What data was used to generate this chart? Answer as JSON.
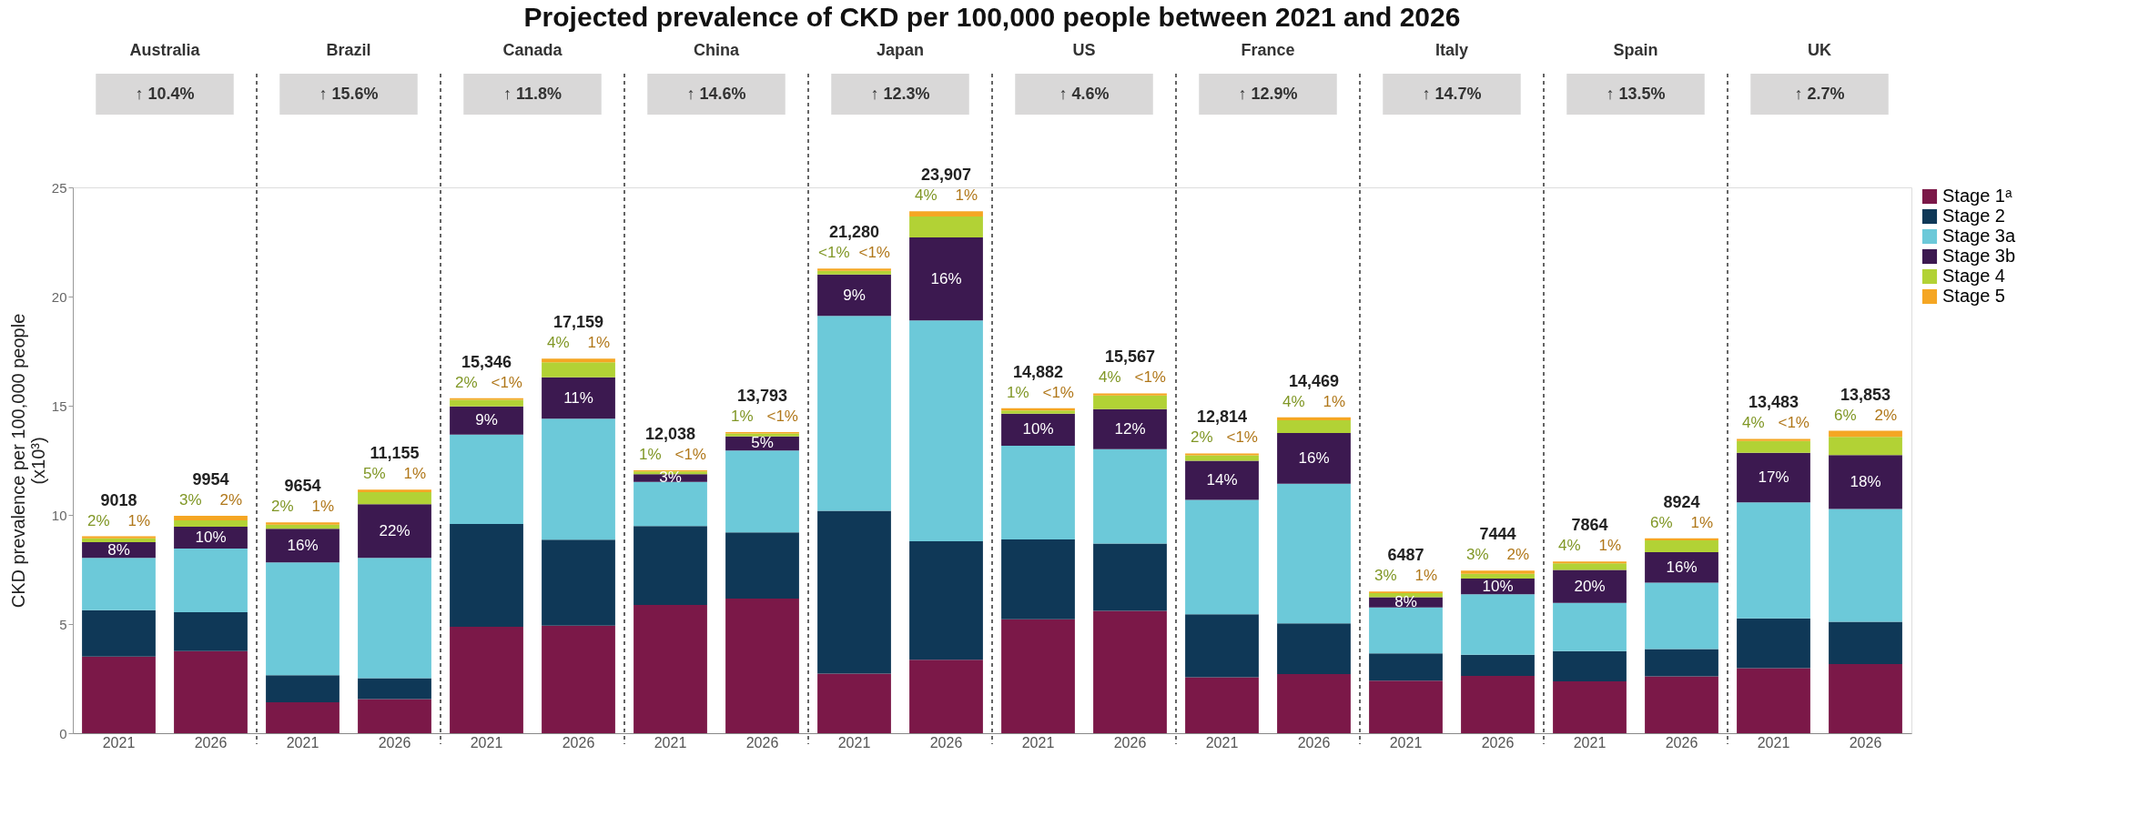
{
  "chart_data": {
    "type": "bar",
    "stacked": true,
    "title": "Projected prevalence of CKD per 100,000 people between 2021 and 2026",
    "ylabel": "CKD prevalence per 100,000 people\n(x10³)",
    "categories": [
      "2021",
      "2026",
      "2021",
      "2026",
      "2021",
      "2026",
      "2021",
      "2026",
      "2021",
      "2026",
      "2021",
      "2026",
      "2021",
      "2026",
      "2021",
      "2026",
      "2021",
      "2026",
      "2021",
      "2026"
    ],
    "ylim": [
      0,
      25
    ],
    "yticks": [
      0,
      5,
      10,
      15,
      20,
      25
    ],
    "grid": false,
    "legend": "right",
    "series": [
      {
        "name": "Stage 1ᵃ",
        "color": "#7b1848",
        "values": [
          3.51,
          3.76,
          1.42,
          1.56,
          4.88,
          4.93,
          5.88,
          6.17,
          2.73,
          3.36,
          5.22,
          5.6,
          2.56,
          2.71,
          2.41,
          2.62,
          2.37,
          2.6,
          2.98,
          3.17
        ]
      },
      {
        "name": "Stage 2",
        "color": "#0f3857",
        "values": [
          2.13,
          1.78,
          1.24,
          0.96,
          4.7,
          3.93,
          3.61,
          3.03,
          7.46,
          5.43,
          3.66,
          3.09,
          2.89,
          2.32,
          1.25,
          0.97,
          1.39,
          1.25,
          2.28,
          1.93
        ]
      },
      {
        "name": "Stage 3a",
        "color": "#6cc9d9",
        "values": [
          2.388,
          2.914,
          5.164,
          5.515,
          4.096,
          5.549,
          2.018,
          3.753,
          8.92,
          10.117,
          4.282,
          4.317,
          5.234,
          6.399,
          2.097,
          2.774,
          2.204,
          3.044,
          5.313,
          5.173
        ]
      },
      {
        "name": "Stage 3b",
        "color": "#3c1950",
        "values": [
          0.72,
          1.0,
          1.54,
          2.45,
          1.29,
          1.89,
          0.36,
          0.64,
          1.9,
          3.8,
          1.47,
          1.84,
          1.79,
          2.32,
          0.47,
          0.72,
          1.51,
          1.4,
          2.27,
          2.47
        ]
      },
      {
        "name": "Stage 4",
        "color": "#b2d235",
        "values": [
          0.18,
          0.3,
          0.19,
          0.56,
          0.3,
          0.69,
          0.12,
          0.14,
          0.17,
          0.96,
          0.15,
          0.62,
          0.26,
          0.58,
          0.19,
          0.22,
          0.31,
          0.54,
          0.54,
          0.83
        ]
      },
      {
        "name": "Stage 5",
        "color": "#f5a623",
        "values": [
          0.09,
          0.2,
          0.1,
          0.11,
          0.08,
          0.17,
          0.05,
          0.06,
          0.1,
          0.24,
          0.1,
          0.1,
          0.08,
          0.14,
          0.07,
          0.14,
          0.08,
          0.09,
          0.1,
          0.28
        ]
      }
    ],
    "totals": [
      "9018",
      "9954",
      "9654",
      "11,155",
      "15,346",
      "17,159",
      "12,038",
      "13,793",
      "21,280",
      "23,907",
      "14,882",
      "15,567",
      "12,814",
      "14,469",
      "6487",
      "7444",
      "7864",
      "8924",
      "13,483",
      "13,853"
    ],
    "annotations": [
      "Australia",
      "↑ 10.4%",
      "Brazil",
      "↑ 15.6%",
      "Canada",
      "↑ 11.8%",
      "China",
      "↑ 14.6%",
      "Japan",
      "↑ 12.3%",
      "US",
      "↑ 4.6%",
      "France",
      "↑ 12.9%",
      "Italy",
      "↑ 14.7%",
      "Spain",
      "↑ 13.5%",
      "UK",
      "↑ 2.7%",
      "8%",
      "10%",
      "16%",
      "22%",
      "9%",
      "11%",
      "3%",
      "5%",
      "9%",
      "16%",
      "10%",
      "12%",
      "14%",
      "16%",
      "8%",
      "10%",
      "20%",
      "16%",
      "17%",
      "18%",
      "2%",
      "3%",
      "2%",
      "5%",
      "2%",
      "4%",
      "1%",
      "1%",
      "<1%",
      "4%",
      "1%",
      "4%",
      "2%",
      "4%",
      "3%",
      "3%",
      "4%",
      "6%",
      "4%",
      "6%",
      "1%",
      "2%",
      "1%",
      "1%",
      "<1%",
      "1%",
      "<1%",
      "<1%",
      "<1%",
      "1%",
      "<1%",
      "<1%",
      "<1%",
      "1%",
      "1%",
      "2%",
      "1%",
      "1%",
      "<1%",
      "2%"
    ]
  }
}
